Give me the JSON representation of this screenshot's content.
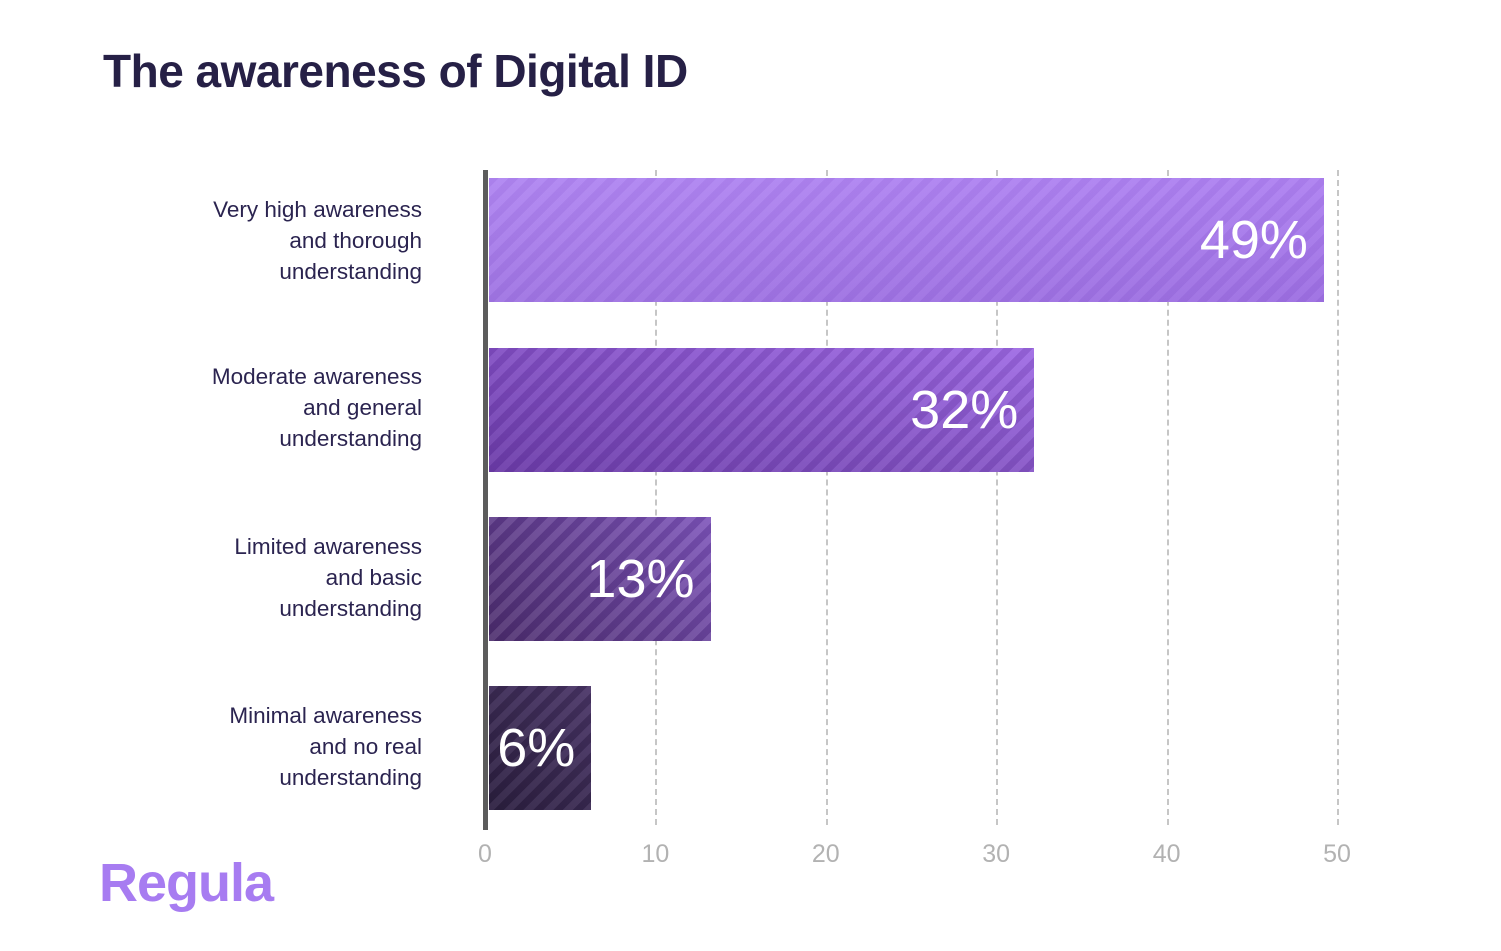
{
  "title": "The awareness of Digital ID",
  "brand": {
    "logo_text": "Regula",
    "logo_color": "#a77cf1"
  },
  "chart_data": {
    "type": "bar",
    "orientation": "horizontal",
    "title": "The awareness of Digital ID",
    "categories": [
      "Very high awareness and thorough understanding",
      "Moderate awareness and general understanding",
      "Limited awareness and basic understanding",
      "Minimal awareness and no real understanding"
    ],
    "category_lines": [
      [
        "Very high awareness",
        "and thorough",
        "understanding"
      ],
      [
        "Moderate awareness",
        "and general",
        "understanding"
      ],
      [
        "Limited awareness",
        "and basic",
        "understanding"
      ],
      [
        "Minimal awareness",
        "and no real",
        "understanding"
      ]
    ],
    "values": [
      49,
      32,
      13,
      6
    ],
    "value_labels": [
      "49%",
      "32%",
      "13%",
      "6%"
    ],
    "xlabel": "",
    "ylabel": "",
    "xlim": [
      0,
      50
    ],
    "x_ticks": [
      "0",
      "10",
      "20",
      "30",
      "40",
      "50"
    ],
    "grid": "vertical-dashed",
    "legend": "none",
    "bar_colors": [
      "#aa7cf0",
      "#8f57d6",
      "#624092",
      "#392a52"
    ],
    "value_label_color": "#ffffff",
    "axis_label_color": "#b2b2b2",
    "category_label_color": "#2b2450"
  }
}
